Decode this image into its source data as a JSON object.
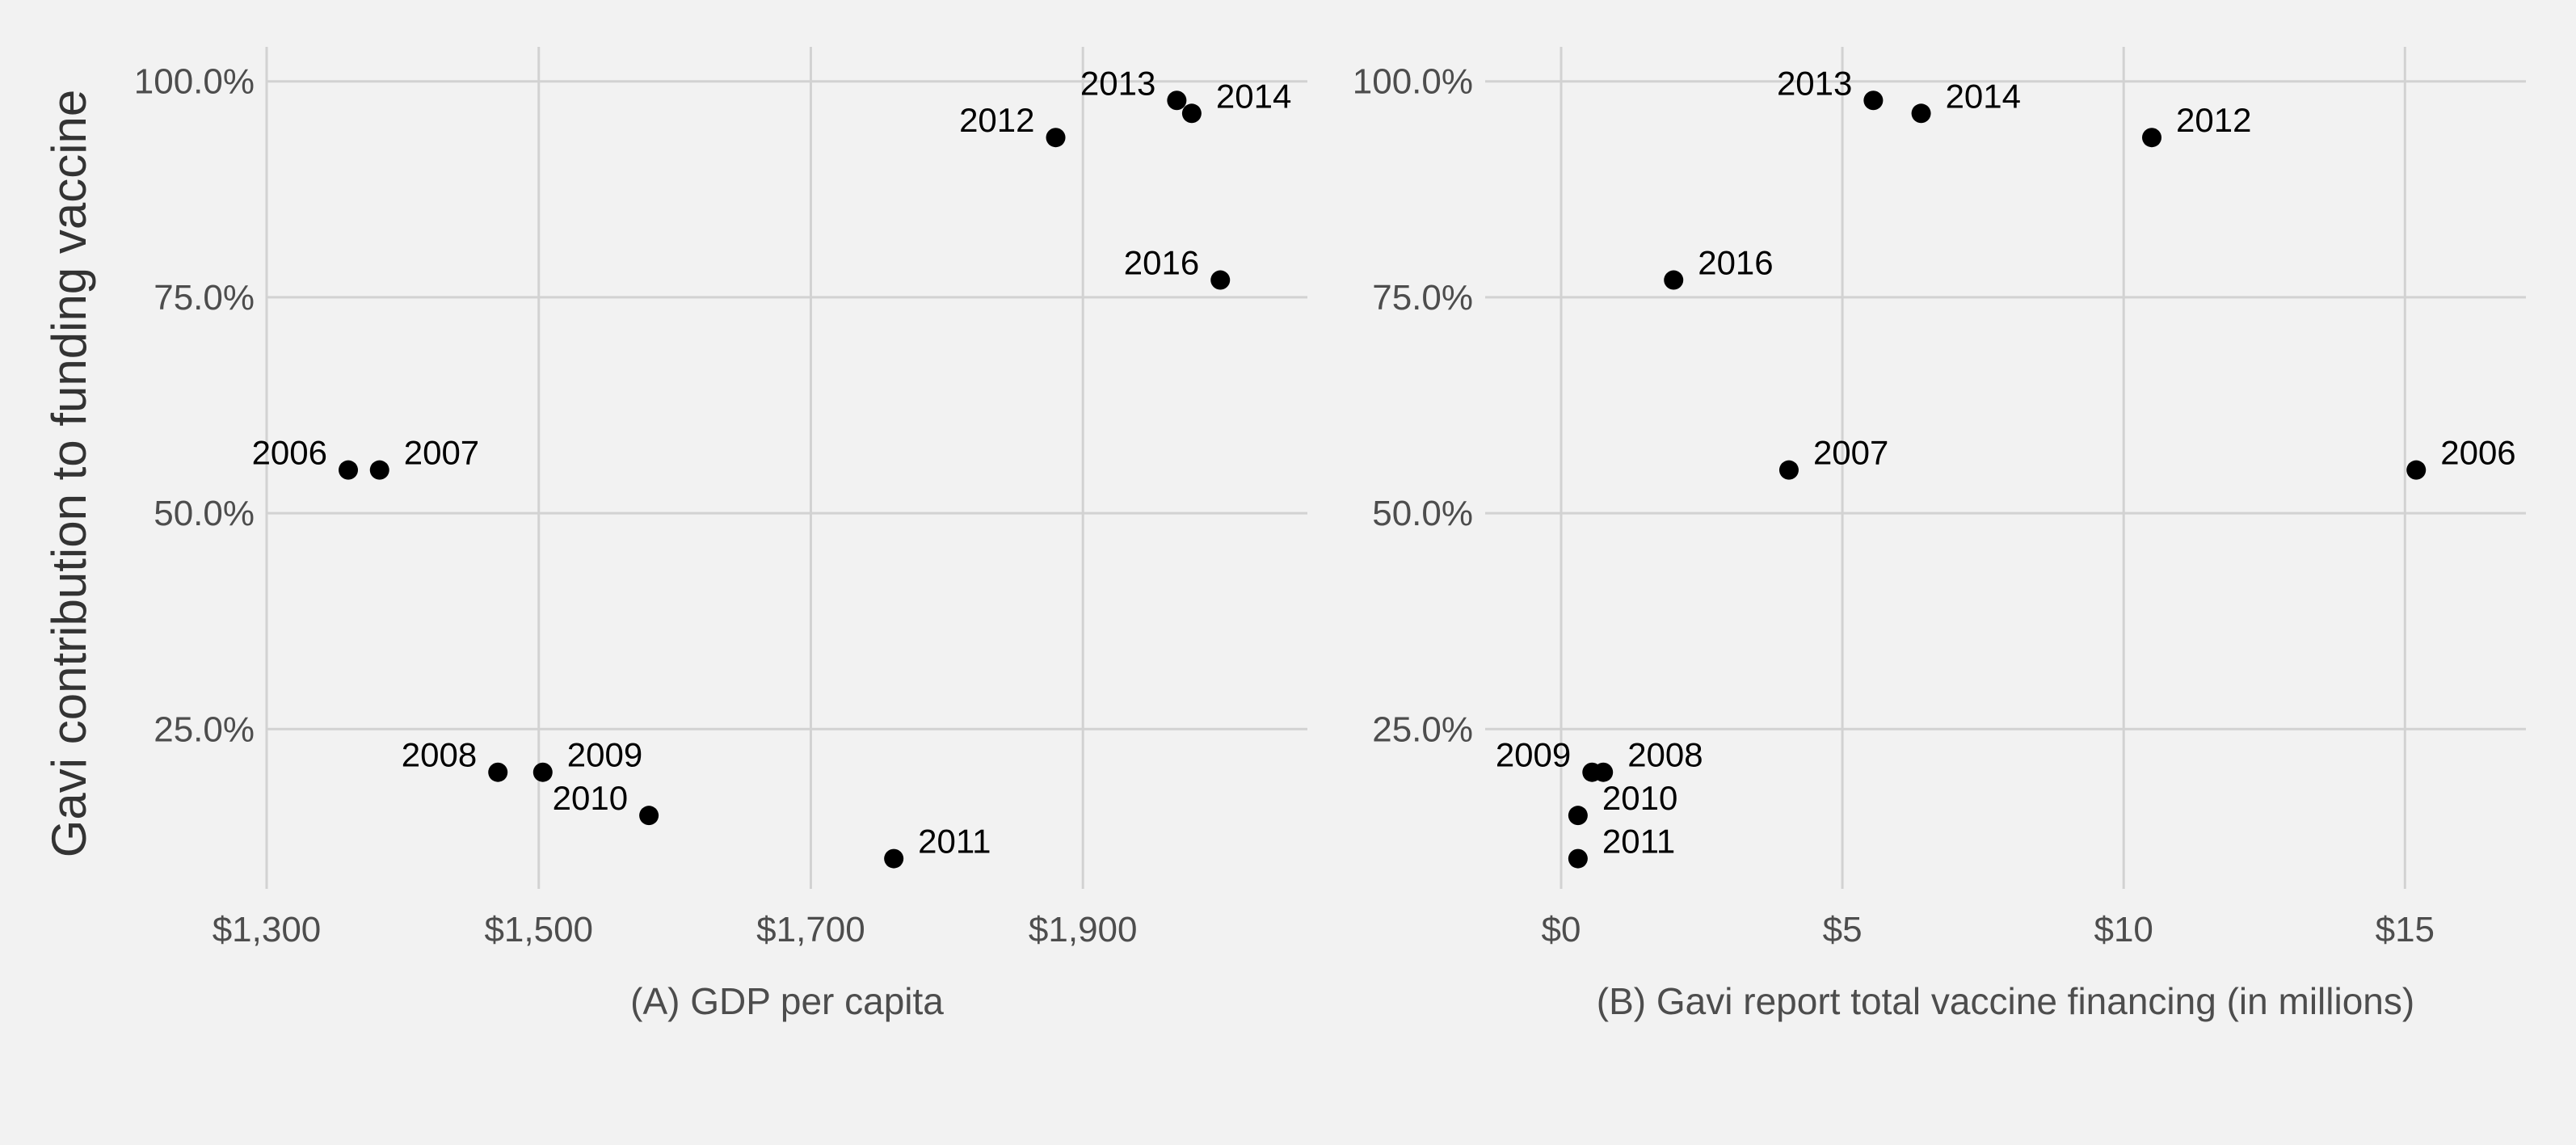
{
  "ylabel": "Gavi contribution to funding vaccine",
  "chart_data": [
    {
      "type": "scatter",
      "xlabel": "(A) GDP per capita",
      "ylabel": "Gavi contribution to funding vaccine",
      "xlim": [
        1300,
        2065
      ],
      "ylim": [
        0.065,
        1.04
      ],
      "x_ticks": [
        1300,
        1500,
        1700,
        1900
      ],
      "x_tick_labels": [
        "$1,300",
        "$1,500",
        "$1,700",
        "$1,900"
      ],
      "y_ticks": [
        0.25,
        0.5,
        0.75,
        1.0
      ],
      "y_tick_labels": [
        "25.0%",
        "50.0%",
        "75.0%",
        "100.0%"
      ],
      "grid": true,
      "points": [
        {
          "label": "2006",
          "x": 1360,
          "y": 0.55,
          "side": "left"
        },
        {
          "label": "2007",
          "x": 1383,
          "y": 0.55,
          "side": "right"
        },
        {
          "label": "2008",
          "x": 1470,
          "y": 0.2,
          "side": "left"
        },
        {
          "label": "2009",
          "x": 1503,
          "y": 0.2,
          "side": "right"
        },
        {
          "label": "2010",
          "x": 1581,
          "y": 0.15,
          "side": "left"
        },
        {
          "label": "2011",
          "x": 1761,
          "y": 0.1,
          "side": "right"
        },
        {
          "label": "2012",
          "x": 1880,
          "y": 0.935,
          "side": "left"
        },
        {
          "label": "2013",
          "x": 1969,
          "y": 0.978,
          "side": "left"
        },
        {
          "label": "2014",
          "x": 1980,
          "y": 0.963,
          "side": "right"
        },
        {
          "label": "2016",
          "x": 2001,
          "y": 0.77,
          "side": "left"
        }
      ]
    },
    {
      "type": "scatter",
      "xlabel": "(B) Gavi report total vaccine financing (in millions)",
      "ylabel": "",
      "xlim": [
        -1.35,
        17.15
      ],
      "ylim": [
        0.065,
        1.04
      ],
      "x_ticks": [
        0,
        5,
        10,
        15
      ],
      "x_tick_labels": [
        "$0",
        "$5",
        "$10",
        "$15"
      ],
      "y_ticks": [
        0.25,
        0.5,
        0.75,
        1.0
      ],
      "y_tick_labels": [
        "25.0%",
        "50.0%",
        "75.0%",
        "100.0%"
      ],
      "grid": true,
      "points": [
        {
          "label": "2006",
          "x": 15.2,
          "y": 0.55,
          "side": "right"
        },
        {
          "label": "2007",
          "x": 4.05,
          "y": 0.55,
          "side": "right"
        },
        {
          "label": "2008",
          "x": 0.75,
          "y": 0.2,
          "side": "right"
        },
        {
          "label": "2009",
          "x": 0.55,
          "y": 0.2,
          "side": "left"
        },
        {
          "label": "2010",
          "x": 0.3,
          "y": 0.15,
          "side": "right"
        },
        {
          "label": "2011",
          "x": 0.3,
          "y": 0.1,
          "side": "right"
        },
        {
          "label": "2012",
          "x": 10.5,
          "y": 0.935,
          "side": "right"
        },
        {
          "label": "2013",
          "x": 5.55,
          "y": 0.978,
          "side": "left"
        },
        {
          "label": "2014",
          "x": 6.4,
          "y": 0.963,
          "side": "right"
        },
        {
          "label": "2016",
          "x": 2.0,
          "y": 0.77,
          "side": "right"
        }
      ]
    }
  ]
}
